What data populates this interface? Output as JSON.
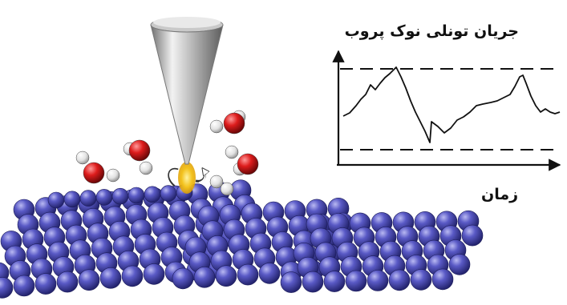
{
  "graph": {
    "title": "جریان تونلی نوک پروب",
    "x_axis_label": "زمان"
  },
  "colors": {
    "atom": "#4a4ab4",
    "oxygen": "#d41d1d",
    "hydrogen": "#e8e8e8",
    "tip_light": "#e6e6e6",
    "tip_dark": "#7a7a7a",
    "tunnel_glow": "#f3c21d",
    "line": "#111111"
  },
  "icons": [
    "probe-tip-icon",
    "water-molecule-icon",
    "surface-atoms-icon",
    "rotation-arrow-icon"
  ]
}
